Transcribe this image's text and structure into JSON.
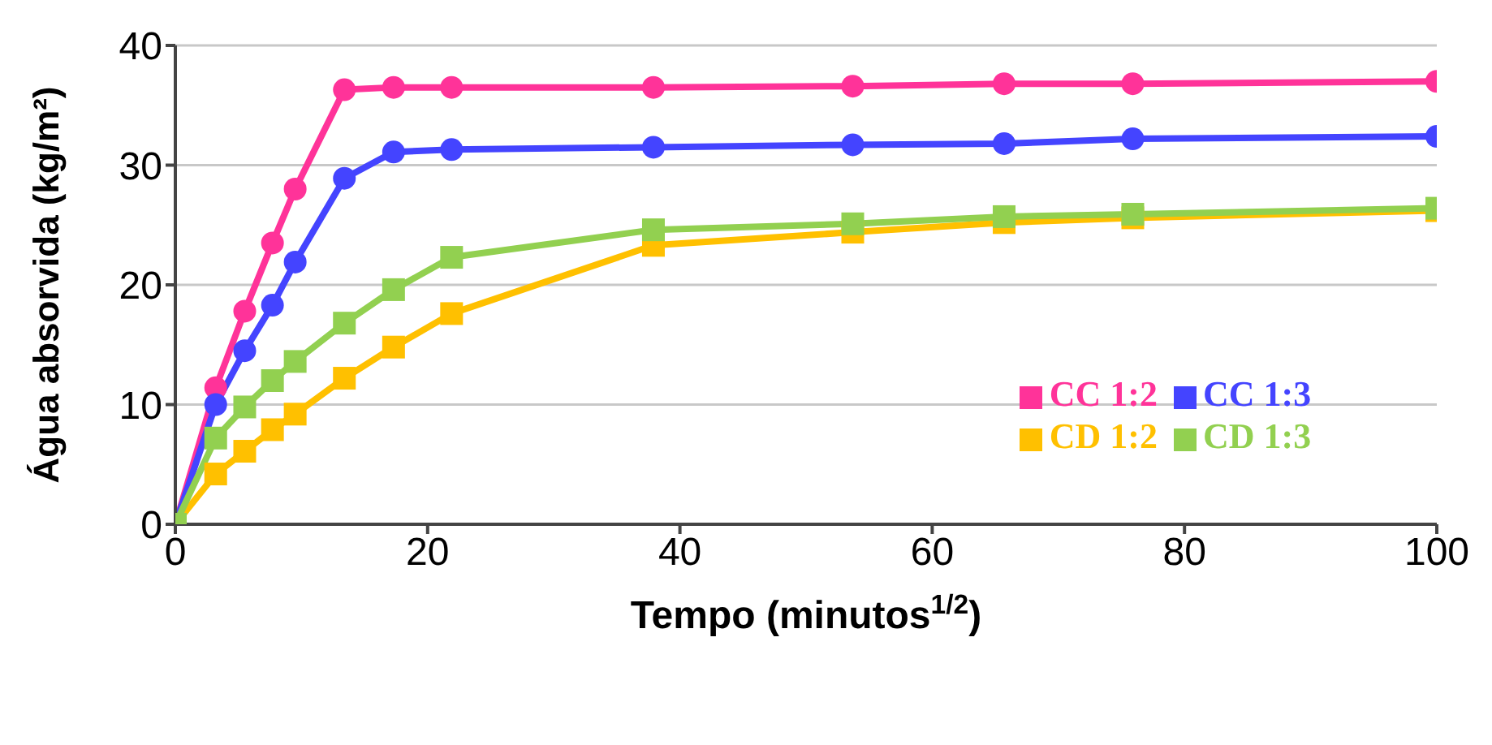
{
  "chart_data": {
    "type": "line",
    "xlabel": "Tempo (minutos$^{1/2}$)",
    "ylabel": "Água absorvida (kg/m²)",
    "x": [
      0,
      3.2,
      5.5,
      7.7,
      9.5,
      13.4,
      17.3,
      21.9,
      37.9,
      53.7,
      65.7,
      75.9,
      100
    ],
    "series": [
      {
        "name": "CC 1:2",
        "color": "#ff3399",
        "marker": "circle",
        "values": [
          0,
          11.4,
          17.8,
          23.5,
          28.0,
          36.3,
          36.5,
          36.5,
          36.5,
          36.6,
          36.8,
          36.8,
          37.0
        ]
      },
      {
        "name": "CC 1:3",
        "color": "#4444ff",
        "marker": "circle",
        "values": [
          0,
          10.0,
          14.5,
          18.3,
          21.9,
          28.9,
          31.1,
          31.3,
          31.5,
          31.7,
          31.8,
          32.2,
          32.4
        ]
      },
      {
        "name": "CD 1:2",
        "color": "#ffc000",
        "marker": "square",
        "values": [
          0,
          4.2,
          6.1,
          7.9,
          9.2,
          12.2,
          14.8,
          17.6,
          23.3,
          24.4,
          25.2,
          25.6,
          26.2
        ]
      },
      {
        "name": "CD 1:3",
        "color": "#92d050",
        "marker": "square",
        "values": [
          0,
          7.2,
          9.8,
          12.0,
          13.6,
          16.8,
          19.6,
          22.3,
          24.6,
          25.1,
          25.7,
          25.9,
          26.4
        ]
      }
    ],
    "xlim": [
      0,
      100
    ],
    "xticks": [
      0,
      20,
      40,
      60,
      80,
      100
    ],
    "ylim": [
      0,
      40
    ],
    "yticks": [
      0,
      10,
      20,
      30,
      40
    ],
    "grid": "y",
    "legend": "bottom right"
  }
}
